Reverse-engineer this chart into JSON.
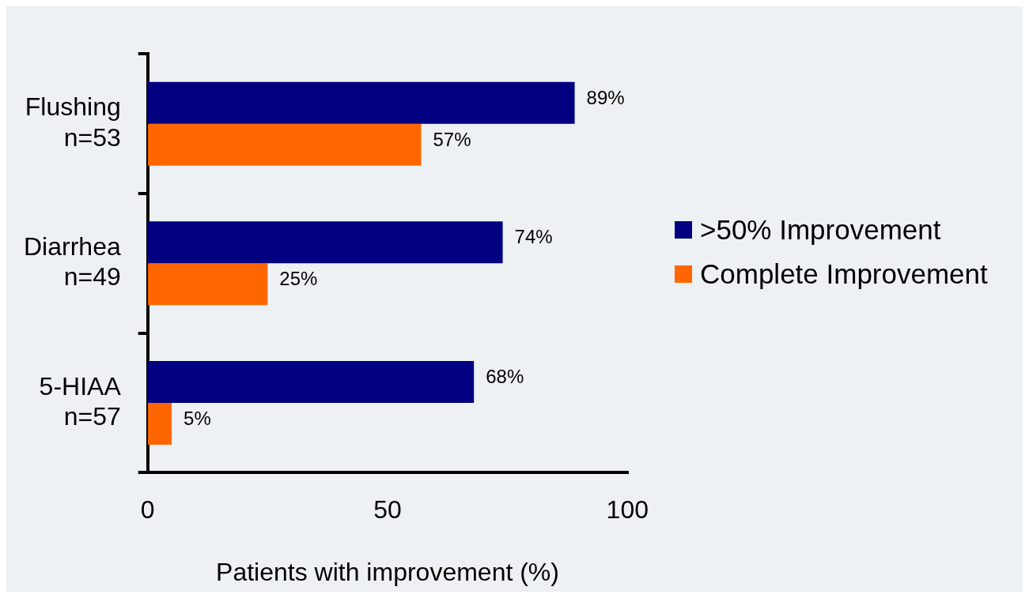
{
  "chart_data": {
    "type": "bar",
    "orientation": "horizontal",
    "xlabel": "Patients with improvement (%)",
    "categories": [
      "Flushing\nn=53",
      "Diarrhea\nn=49",
      "5-HIAA\nn=57"
    ],
    "series": [
      {
        "name": ">50% Improvement",
        "color": "#000080",
        "values": [
          89,
          74,
          68
        ],
        "value_labels": [
          "89%",
          "74%",
          "68%"
        ]
      },
      {
        "name": "Complete Improvement",
        "color": "#ff6600",
        "values": [
          57,
          25,
          5
        ],
        "value_labels": [
          "57%",
          "25%",
          "5%"
        ]
      }
    ],
    "xlim": [
      0,
      100
    ],
    "xticks": [
      0,
      50,
      100
    ],
    "grid": false,
    "legend": "right"
  }
}
